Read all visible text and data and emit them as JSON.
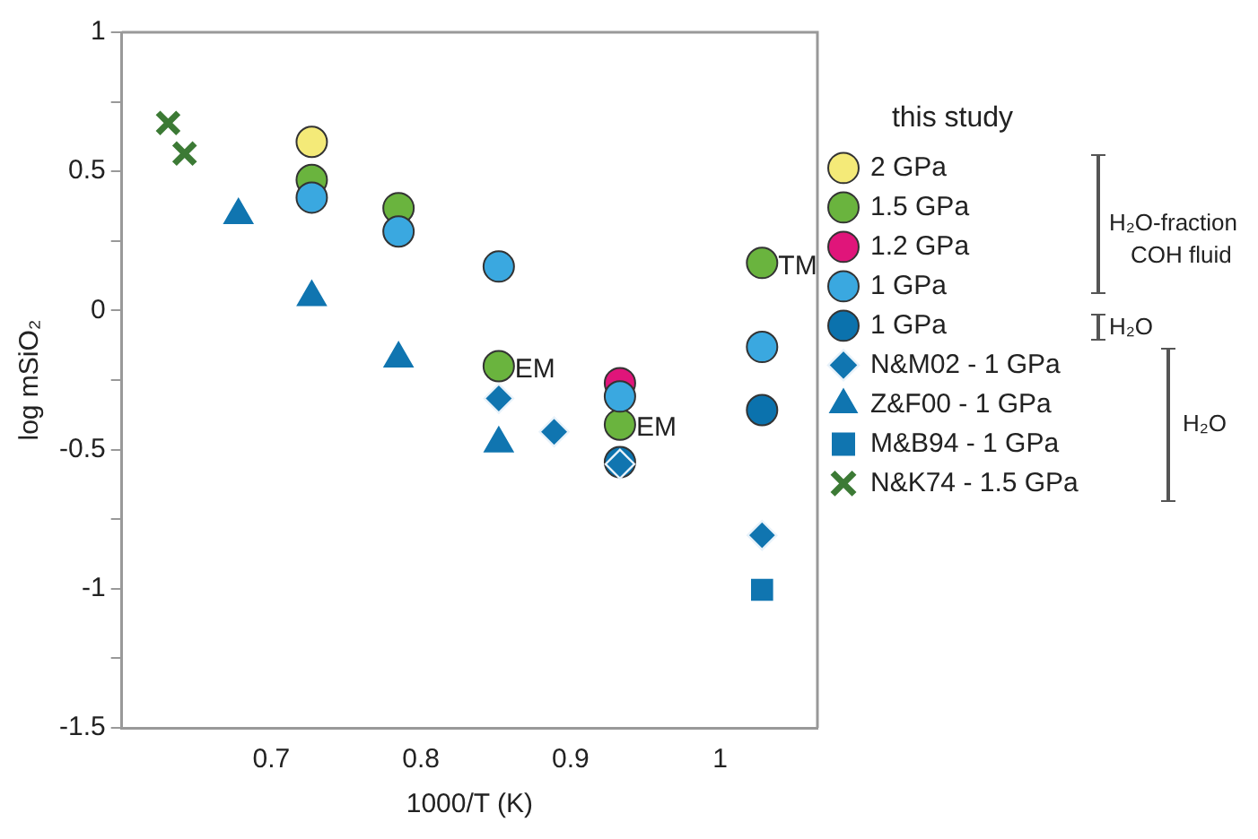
{
  "chart_data": {
    "type": "scatter",
    "xlabel": "1000/T (K)",
    "ylabel": "log mSiO₂",
    "legend_title": "this study",
    "legend": "right",
    "grid": false,
    "xlim": [
      0.6,
      1.065
    ],
    "xticks": [
      0.7,
      0.8,
      0.9,
      1
    ],
    "ylim": [
      -1.5,
      1
    ],
    "yticks": [
      -1.5,
      {
        "value": -1.25,
        "label": null
      },
      -1,
      {
        "value": -0.75,
        "label": null
      },
      -0.5,
      {
        "value": -0.25,
        "label": null
      },
      0,
      {
        "value": 0.25,
        "label": null
      },
      0.5,
      {
        "value": 0.75,
        "label": null
      },
      1
    ],
    "series": [
      {
        "name": "2 GPa",
        "color": "#f4ea78",
        "marker": "circle",
        "x": [
          0.727
        ],
        "values": [
          0.606
        ]
      },
      {
        "name": "1.5 GPa",
        "color": "#6ab43e",
        "marker": "circle",
        "x": [
          0.727,
          0.785,
          0.852,
          0.933,
          1.028
        ],
        "values": [
          0.469,
          0.368,
          -0.2,
          -0.41,
          0.171
        ]
      },
      {
        "name": "1.2 GPa",
        "color": "#e0157a",
        "marker": "circle",
        "x": [
          0.933
        ],
        "values": [
          -0.261
        ]
      },
      {
        "name": "1 GPa",
        "color": "#3aa8e0",
        "marker": "circle",
        "x": [
          0.727,
          0.785,
          0.852,
          0.933,
          1.028
        ],
        "values": [
          0.406,
          0.284,
          0.158,
          -0.309,
          -0.131
        ]
      },
      {
        "name": "1 GPa",
        "color": "#0b72ad",
        "marker": "circle",
        "x": [
          0.933,
          1.028
        ],
        "values": [
          -0.545,
          -0.358
        ]
      },
      {
        "name": "N&M02 - 1 GPa",
        "color": "#1075b0",
        "marker": "diamond",
        "x": [
          0.852,
          0.889,
          0.933,
          1.028
        ],
        "values": [
          -0.316,
          -0.436,
          -0.552,
          -0.808
        ]
      },
      {
        "name": "Z&F00 - 1 GPa",
        "color": "#1075b0",
        "marker": "triangle",
        "x": [
          0.678,
          0.727,
          0.785,
          0.852
        ],
        "values": [
          0.343,
          0.048,
          -0.173,
          -0.478
        ]
      },
      {
        "name": "M&B94 - 1 GPa",
        "color": "#1075b0",
        "marker": "square",
        "x": [
          1.028
        ],
        "values": [
          -1.004
        ]
      },
      {
        "name": "N&K74 - 1.5 GPa",
        "color": "#3c7a35",
        "marker": "cross",
        "x": [
          0.631,
          0.642
        ],
        "values": [
          0.674,
          0.564
        ]
      }
    ],
    "annotations": [
      {
        "text": "EM",
        "x": 0.852,
        "y": -0.2
      },
      {
        "text": "EM",
        "x": 0.933,
        "y": -0.41
      },
      {
        "text": "TM",
        "x": 1.028,
        "y": 0.171
      },
      "H₂O-fraction",
      "COH fluid",
      "H₂O",
      "H₂O"
    ]
  }
}
